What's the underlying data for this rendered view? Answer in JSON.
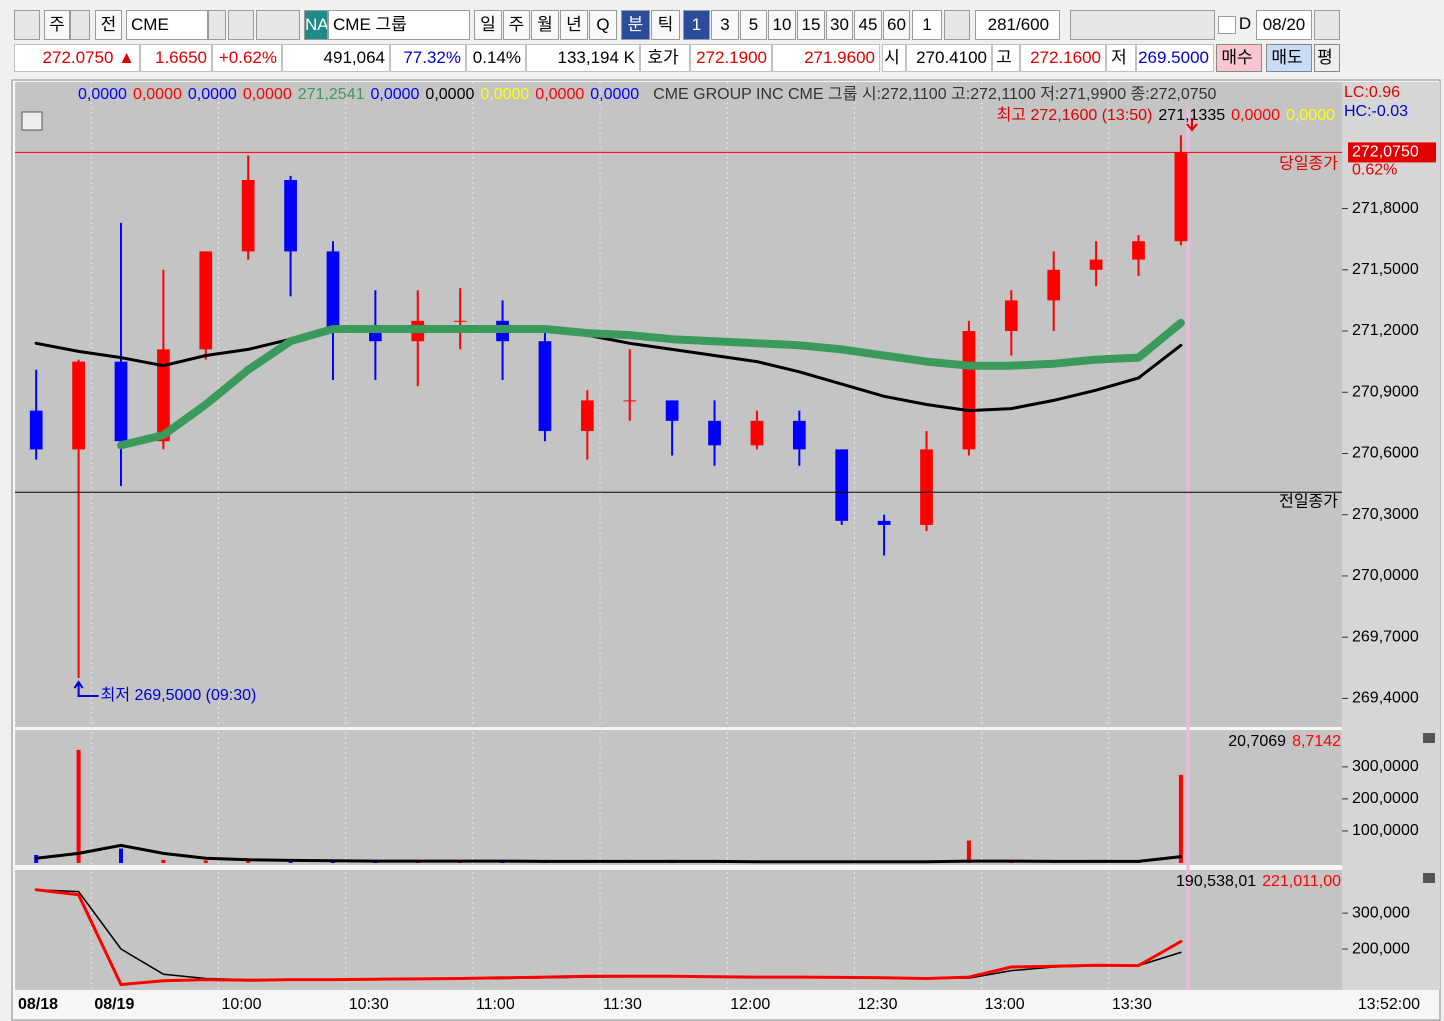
{
  "toolbar": {
    "row1": [
      "주",
      "전",
      "CME",
      "NA",
      "CME 그룹",
      "일",
      "주",
      "월",
      "년",
      "Q",
      "분",
      "틱",
      "1",
      "3",
      "5",
      "10",
      "15",
      "30",
      "45",
      "60",
      "1",
      "281",
      "/600",
      "D",
      "08/20"
    ],
    "row2": [
      "272.0750 ▲",
      "1.6650",
      "+0.62%",
      "491,064",
      "77.32%",
      "0.14%",
      "133,194 K",
      "호가",
      "272.1900",
      "271.9600",
      "시",
      "270.4100",
      "고",
      "272.1600",
      "저",
      "269.5000",
      "매수",
      "매도",
      "평"
    ]
  },
  "chart_data": [
    {
      "type": "candlestick",
      "header_values": [
        {
          "text": "0,0000",
          "color": "#0000ff"
        },
        {
          "text": "0,0000",
          "color": "#ff0000"
        },
        {
          "text": "0,0000",
          "color": "#0000ff"
        },
        {
          "text": "0,0000",
          "color": "#ff0000"
        },
        {
          "text": "271,2541",
          "color": "#3a9a5c"
        },
        {
          "text": "0,0000",
          "color": "#0000ff"
        },
        {
          "text": "0,0000",
          "color": "#000000"
        },
        {
          "text": "0,0000",
          "color": "#ffff00"
        },
        {
          "text": "0,0000",
          "color": "#ff0000"
        },
        {
          "text": "0,0000",
          "color": "#0000ff"
        }
      ],
      "title": "CME GROUP INC  CME 그룹 시:272,1100 고:272,1100 저:271,9900 종:272,0750",
      "lc": "LC:0.96",
      "hc": "HC:-0.03",
      "high_note": "최고 272,1600 (13:50)",
      "sub_values": [
        {
          "text": "271,1335",
          "color": "#000000"
        },
        {
          "text": "0,0000",
          "color": "#ff0000"
        },
        {
          "text": "0,0000",
          "color": "#ffff00"
        }
      ],
      "low_note": "최저 269,5000 (09:30)",
      "close_line": {
        "value": 272.075,
        "label": "당일종가",
        "tag": "272,0750",
        "pct": "0.62%"
      },
      "prev_close_line": {
        "value": 270.41,
        "label": "전일종가"
      },
      "x": [
        "09:12",
        "09:22",
        "09:32",
        "09:42",
        "09:52",
        "10:02",
        "10:12",
        "10:22",
        "10:32",
        "10:42",
        "10:52",
        "11:02",
        "11:12",
        "11:22",
        "11:32",
        "11:42",
        "11:52",
        "12:02",
        "12:12",
        "12:22",
        "12:32",
        "12:42",
        "12:52",
        "13:02",
        "13:12",
        "13:22",
        "13:32",
        "13:42"
      ],
      "open": [
        270.81,
        270.62,
        271.05,
        270.66,
        271.11,
        271.59,
        271.94,
        271.59,
        271.2,
        271.15,
        271.25,
        271.25,
        271.15,
        270.71,
        270.86,
        270.86,
        270.76,
        270.64,
        270.76,
        270.62,
        270.27,
        270.25,
        270.62,
        271.2,
        271.35,
        271.5,
        271.55,
        271.64
      ],
      "high": [
        271.01,
        271.06,
        271.73,
        271.5,
        271.59,
        272.06,
        271.96,
        271.64,
        271.4,
        271.4,
        271.41,
        271.35,
        271.2,
        270.91,
        271.11,
        270.86,
        270.86,
        270.81,
        270.81,
        270.62,
        270.3,
        270.71,
        271.25,
        271.4,
        271.59,
        271.64,
        271.67,
        272.16
      ],
      "low": [
        270.57,
        269.5,
        270.44,
        270.62,
        271.06,
        271.55,
        271.37,
        270.96,
        270.96,
        270.93,
        271.11,
        270.96,
        270.66,
        270.57,
        270.76,
        270.59,
        270.54,
        270.62,
        270.54,
        270.25,
        270.1,
        270.22,
        270.59,
        271.08,
        271.2,
        271.42,
        271.47,
        271.62
      ],
      "close": [
        270.62,
        271.05,
        270.66,
        271.11,
        271.59,
        271.94,
        271.59,
        271.2,
        271.15,
        271.25,
        271.25,
        271.15,
        270.71,
        270.86,
        270.86,
        270.76,
        270.64,
        270.76,
        270.62,
        270.27,
        270.25,
        270.62,
        271.2,
        271.35,
        271.5,
        271.55,
        271.64,
        272.075
      ],
      "up_color": "#ff0000",
      "down_color": "#0000ff",
      "lines": [
        {
          "color": "#000000",
          "values": [
            271.14,
            271.1,
            271.07,
            271.03,
            271.08,
            271.11,
            271.16,
            271.2,
            271.22,
            271.21,
            271.22,
            271.22,
            271.2,
            271.18,
            271.14,
            271.11,
            271.08,
            271.05,
            271.0,
            270.94,
            270.88,
            270.84,
            270.81,
            270.82,
            270.86,
            270.91,
            270.97,
            271.13
          ]
        },
        {
          "color": "#3a9a5c",
          "values": [
            null,
            null,
            270.64,
            270.69,
            270.84,
            271.01,
            271.15,
            271.21,
            271.21,
            271.21,
            271.21,
            271.21,
            271.21,
            271.19,
            271.18,
            271.16,
            271.15,
            271.14,
            271.13,
            271.11,
            271.08,
            271.05,
            271.03,
            271.03,
            271.04,
            271.06,
            271.07,
            271.24
          ]
        }
      ],
      "ylim": [
        269.26,
        272.42
      ],
      "yticks": [
        {
          "value": 271.8,
          "label": "271,8000"
        },
        {
          "value": 271.5,
          "label": "271,5000"
        },
        {
          "value": 271.2,
          "label": "271,2000"
        },
        {
          "value": 270.9,
          "label": "270,9000"
        },
        {
          "value": 270.6,
          "label": "270,6000"
        },
        {
          "value": 270.3,
          "label": "270,3000"
        },
        {
          "value": 270.0,
          "label": "270,0000"
        },
        {
          "value": 269.7,
          "label": "269,7000"
        },
        {
          "value": 269.4,
          "label": "269,4000"
        }
      ],
      "xlim": [
        "09:12",
        "14:25"
      ],
      "xticks": [
        {
          "value": "09:12",
          "label": "08/18"
        },
        {
          "value": "09:30",
          "label": "08/19"
        },
        "10:00",
        "10:30",
        "11:00",
        "11:30",
        "12:00",
        "12:30",
        "13:00",
        "13:30"
      ],
      "current_time": "13:52:00"
    },
    {
      "type": "bar",
      "header": [
        {
          "text": "20,7069",
          "color": "#000000"
        },
        {
          "text": "8,7142",
          "color": "#ff0000"
        }
      ],
      "values": [
        25000,
        353000,
        45000,
        10000,
        8000,
        8000,
        8000,
        6000,
        6000,
        8000,
        8000,
        6000,
        6000,
        6000,
        6000,
        5000,
        5000,
        5000,
        5000,
        5000,
        5000,
        5000,
        70000,
        6000,
        6000,
        6000,
        8000,
        275000
      ],
      "lines": [
        {
          "color": "#000000",
          "values": [
            15000,
            30000,
            55000,
            30000,
            15000,
            10000,
            8000,
            7000,
            6000,
            6000,
            6000,
            6000,
            5000,
            5000,
            5000,
            5000,
            5000,
            4000,
            4000,
            4000,
            4000,
            4000,
            6000,
            6000,
            5000,
            5000,
            5000,
            20000
          ]
        }
      ],
      "ylim": [
        0,
        415000
      ],
      "yticks": [
        {
          "value": 300000,
          "label": "300,0000"
        },
        {
          "value": 200000,
          "label": "200,0000"
        },
        {
          "value": 100000,
          "label": "100,0000"
        }
      ]
    },
    {
      "type": "line",
      "header": [
        {
          "text": "190,538,01",
          "color": "#000000"
        },
        {
          "text": "221,011,00",
          "color": "#ff0000"
        }
      ],
      "series": [
        {
          "color": "#000000",
          "values": [
            365000,
            360000,
            200000,
            130000,
            118000,
            115000,
            114000,
            114000,
            115000,
            116000,
            117000,
            118000,
            120000,
            122000,
            123000,
            123000,
            123000,
            122000,
            121000,
            121000,
            120000,
            119000,
            119000,
            140000,
            150000,
            153000,
            154000,
            190538
          ]
        },
        {
          "color": "#ff0000",
          "values": [
            365000,
            351000,
            101000,
            112000,
            115000,
            113000,
            115000,
            115000,
            116000,
            117000,
            118000,
            120000,
            122000,
            124000,
            124000,
            124000,
            123000,
            122000,
            122000,
            121000,
            120000,
            118000,
            122000,
            150000,
            152000,
            155000,
            154000,
            221011
          ]
        }
      ],
      "ylim": [
        86000,
        420000
      ],
      "yticks": [
        {
          "value": 300000,
          "label": "300,000"
        },
        {
          "value": 200000,
          "label": "200,000"
        }
      ]
    }
  ]
}
